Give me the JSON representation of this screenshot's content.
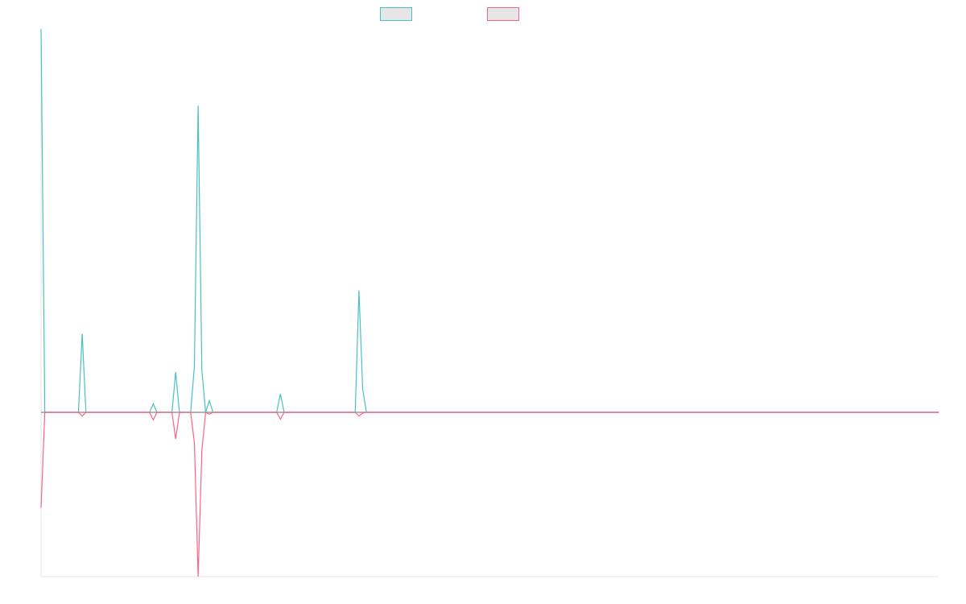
{
  "colors": {
    "series_a": "#4bc0c0",
    "series_b": "#ff6384",
    "legend_fill": "#e6e6e6",
    "axis": "#e5e5e5",
    "zero_line": "#999999"
  },
  "chart_data": {
    "type": "line",
    "legend_placement": "top-center",
    "grid": false,
    "x_count": 240,
    "ylim": [
      -43,
      100
    ],
    "series": [
      {
        "color": "#4bc0c0",
        "points": [
          [
            0,
            100
          ],
          [
            1,
            0
          ],
          [
            10,
            0
          ],
          [
            11,
            20.5
          ],
          [
            12,
            0
          ],
          [
            29,
            0
          ],
          [
            30,
            2.2
          ],
          [
            31,
            0
          ],
          [
            35,
            0
          ],
          [
            36,
            10.5
          ],
          [
            37,
            0
          ],
          [
            40,
            0
          ],
          [
            41,
            12
          ],
          [
            42,
            80
          ],
          [
            43,
            11
          ],
          [
            44,
            0
          ],
          [
            45,
            3
          ],
          [
            46,
            0
          ],
          [
            63,
            0
          ],
          [
            64,
            4.8
          ],
          [
            65,
            0
          ],
          [
            84,
            0
          ],
          [
            85,
            31.8
          ],
          [
            86,
            6
          ],
          [
            87,
            0
          ],
          [
            240,
            0
          ]
        ]
      },
      {
        "color": "#ff6384",
        "points": [
          [
            0,
            -25
          ],
          [
            1,
            0
          ],
          [
            10,
            0
          ],
          [
            11,
            -1
          ],
          [
            12,
            0
          ],
          [
            29,
            0
          ],
          [
            30,
            -2
          ],
          [
            31,
            0
          ],
          [
            35,
            0
          ],
          [
            36,
            -7
          ],
          [
            37,
            0
          ],
          [
            40,
            0
          ],
          [
            41,
            -8
          ],
          [
            42,
            -43
          ],
          [
            43,
            -10
          ],
          [
            44,
            0
          ],
          [
            45,
            -0.5
          ],
          [
            46,
            0
          ],
          [
            63,
            0
          ],
          [
            64,
            -1.8
          ],
          [
            65,
            0
          ],
          [
            84,
            0
          ],
          [
            85,
            -1
          ],
          [
            86,
            -0.2
          ],
          [
            87,
            0
          ],
          [
            240,
            0
          ]
        ]
      }
    ]
  }
}
